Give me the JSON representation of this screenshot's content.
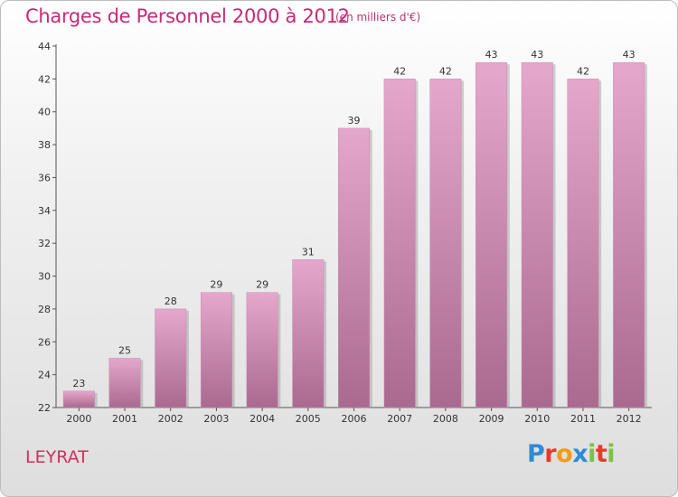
{
  "header": {
    "title": "Charges de Personnel 2000 à 2012",
    "subtitle": "(en milliers d'€)"
  },
  "footer": {
    "town": "LEYRAT",
    "logo_text": "Proxiti",
    "logo_colors": [
      "#2e8bd6",
      "#e8392d",
      "#f39c12",
      "#2e8bd6",
      "#7cc242",
      "#e8392d",
      "#7cc242"
    ]
  },
  "colors": {
    "bar_top": "#e6a7cc",
    "bar_bottom": "#aa6a90",
    "title": "#c72a74",
    "town": "#d03060"
  },
  "chart_data": {
    "type": "bar",
    "title": "Charges de Personnel 2000 à 2012",
    "subtitle": "(en milliers d'€)",
    "categories": [
      "2000",
      "2001",
      "2002",
      "2003",
      "2004",
      "2005",
      "2006",
      "2007",
      "2008",
      "2009",
      "2010",
      "2011",
      "2012"
    ],
    "values": [
      23,
      25,
      28,
      29,
      29,
      31,
      39,
      42,
      42,
      43,
      43,
      42,
      43
    ],
    "xlabel": "",
    "ylabel": "",
    "ylim": [
      22,
      44
    ],
    "yticks": [
      22,
      24,
      26,
      28,
      30,
      32,
      34,
      36,
      38,
      40,
      42,
      44
    ],
    "grid": false,
    "data_labels": true
  }
}
